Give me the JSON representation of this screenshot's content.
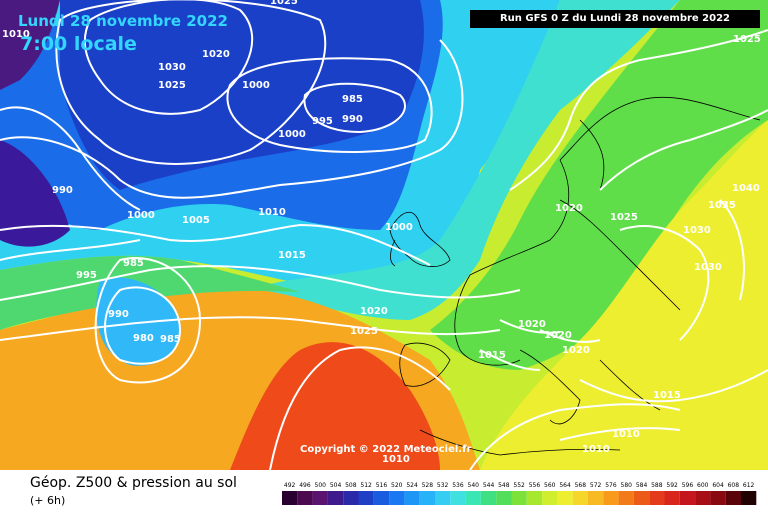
{
  "header": {
    "date": "Lundi 28 novembre 2022",
    "time": "7:00 locale",
    "run_info": "Run GFS 0 Z du Lundi 28 novembre 2022"
  },
  "map": {
    "copyright": "Copyright © 2022 Meteociel.fr",
    "isobar_labels": [
      "1010",
      "1030",
      "1025",
      "1020",
      "1000",
      "985",
      "990",
      "995",
      "1000",
      "1020",
      "1025",
      "1040",
      "1035",
      "1030",
      "1030",
      "1025",
      "990",
      "1000",
      "1005",
      "1010",
      "1015",
      "1000",
      "985",
      "995",
      "990",
      "980",
      "985",
      "1020",
      "1025",
      "1020",
      "1020",
      "1020",
      "1015",
      "1015",
      "1010",
      "1010",
      "1010",
      "1025"
    ]
  },
  "footer": {
    "title": "Géop. Z500 & pression au sol",
    "subtitle": "(+ 6h)",
    "scale_ticks": [
      "492",
      "496",
      "500",
      "504",
      "508",
      "512",
      "516",
      "520",
      "524",
      "528",
      "532",
      "536",
      "540",
      "544",
      "548",
      "552",
      "556",
      "560",
      "564",
      "568",
      "572",
      "576",
      "580",
      "584",
      "588",
      "592",
      "596",
      "600",
      "604",
      "608",
      "612"
    ],
    "scale_colors": [
      "#2a0030",
      "#4b0a4f",
      "#5a1470",
      "#3f1a8c",
      "#2a2aa8",
      "#1f3fc4",
      "#1a5ce0",
      "#1a78f0",
      "#1e96f5",
      "#28b2f7",
      "#36cdf3",
      "#40e0e0",
      "#3ae6b4",
      "#40e082",
      "#52de5a",
      "#7ce23a",
      "#a6e82e",
      "#cfee2e",
      "#eeee30",
      "#f6d62a",
      "#f8ba22",
      "#f89a1c",
      "#f27a18",
      "#ec5a18",
      "#e43c1a",
      "#d8261c",
      "#c4161c",
      "#a80e16",
      "#8a0810",
      "#5a040a",
      "#200202"
    ]
  }
}
